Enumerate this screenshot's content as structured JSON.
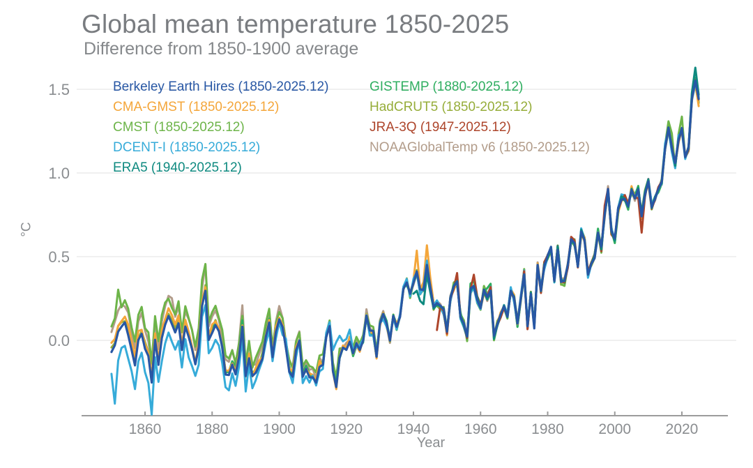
{
  "header": {
    "title": "Global mean temperature 1850-2025",
    "subtitle": "Difference from 1850-1900 average"
  },
  "y_axis": {
    "unit_label": "°C",
    "ticks": [
      {
        "value": 0.0,
        "label": "0.0"
      },
      {
        "value": 0.5,
        "label": "0.5"
      },
      {
        "value": 1.0,
        "label": "1.0"
      },
      {
        "value": 1.5,
        "label": "1.5"
      }
    ]
  },
  "x_axis": {
    "label": "Year",
    "ticks": [
      1860,
      1880,
      1900,
      1920,
      1940,
      1960,
      1980,
      2000,
      2020
    ]
  },
  "chart_data": {
    "type": "line",
    "title": "Global mean temperature 1850-2025",
    "subtitle": "Difference from 1850-1900 average",
    "xlabel": "Year",
    "ylabel": "°C",
    "xlim": [
      1839,
      2034
    ],
    "ylim": [
      -0.45,
      1.7
    ],
    "grid": "horizontal",
    "grid_color": "#ebebeb",
    "axis_color": "#9b9b9b",
    "tick_label_color": "#8a8d90",
    "legend_position": "top-left inside plot, two columns, colored text",
    "x_start_year": 1850,
    "x_end_year": 2025,
    "base_anomaly_by_year": [
      -0.07,
      -0.03,
      0.05,
      0.08,
      0.1,
      0.03,
      -0.05,
      -0.15,
      0.0,
      0.04,
      -0.05,
      -0.1,
      -0.25,
      0.0,
      -0.15,
      0.02,
      0.1,
      0.15,
      0.1,
      0.05,
      0.1,
      -0.05,
      0.08,
      0.02,
      -0.05,
      -0.15,
      -0.05,
      0.2,
      0.3,
      0.0,
      0.05,
      0.1,
      0.05,
      -0.05,
      -0.2,
      -0.2,
      -0.15,
      -0.2,
      -0.1,
      0.08,
      -0.22,
      -0.1,
      -0.22,
      -0.2,
      -0.15,
      -0.1,
      0.03,
      0.1,
      -0.1,
      0.05,
      0.13,
      0.08,
      -0.05,
      -0.18,
      -0.22,
      -0.05,
      0.0,
      -0.22,
      -0.18,
      -0.22,
      -0.22,
      -0.25,
      -0.15,
      -0.15,
      0.02,
      0.08,
      -0.18,
      -0.28,
      -0.1,
      -0.05,
      -0.05,
      0.0,
      -0.08,
      -0.02,
      -0.05,
      0.0,
      0.15,
      0.05,
      0.05,
      -0.1,
      0.1,
      0.15,
      0.1,
      0.0,
      0.15,
      0.08,
      0.15,
      0.3,
      0.35,
      0.28,
      0.35,
      0.42,
      0.3,
      0.3,
      0.45,
      0.33,
      0.2,
      0.22,
      0.2,
      0.18,
      0.05,
      0.25,
      0.32,
      0.35,
      0.15,
      0.1,
      0.02,
      0.3,
      0.32,
      0.25,
      0.2,
      0.3,
      0.25,
      0.3,
      0.02,
      0.1,
      0.15,
      0.2,
      0.15,
      0.3,
      0.25,
      0.1,
      0.25,
      0.4,
      0.08,
      0.28,
      0.08,
      0.45,
      0.3,
      0.45,
      0.5,
      0.55,
      0.35,
      0.55,
      0.35,
      0.35,
      0.45,
      0.6,
      0.58,
      0.45,
      0.65,
      0.6,
      0.4,
      0.45,
      0.5,
      0.65,
      0.55,
      0.75,
      0.9,
      0.65,
      0.6,
      0.78,
      0.85,
      0.85,
      0.8,
      0.9,
      0.85,
      0.9,
      0.75,
      0.88,
      0.95,
      0.8,
      0.85,
      0.9,
      0.95,
      1.15,
      1.27,
      1.15,
      1.05,
      1.2,
      1.27,
      1.1,
      1.15,
      1.45,
      1.55,
      1.44
    ],
    "series": [
      {
        "id": "berkeley",
        "label": "Berkeley Earth Hires (1850-2025.12)",
        "color": "#2857a4",
        "start_year": 1850,
        "early_offset": 0.0,
        "offset_zero_year": 1920,
        "noise_amp": 0.01,
        "seed": 11,
        "width": 3.2,
        "adjust": {}
      },
      {
        "id": "cma_gmst",
        "label": "CMA-GMST (1850-2025.12)",
        "color": "#f4a63a",
        "start_year": 1850,
        "early_offset": 0.05,
        "offset_zero_year": 1930,
        "noise_amp": 0.022,
        "seed": 22,
        "width": 3,
        "adjust": {
          "1941": 0.12,
          "1943": 0.06,
          "1944": 0.1,
          "1945": 0.05,
          "2025": -0.03
        }
      },
      {
        "id": "cmst",
        "label": "CMST (1850-2025.12)",
        "color": "#6db449",
        "start_year": 1850,
        "early_offset": 0.15,
        "offset_zero_year": 1935,
        "noise_amp": 0.028,
        "seed": 33,
        "width": 3,
        "adjust": {
          "1852": 0.1,
          "1877": 0.05,
          "1878": 0.06,
          "2016": 0.05,
          "2017": 0.06,
          "2019": 0.05,
          "2020": 0.06
        }
      },
      {
        "id": "dcent",
        "label": "DCENT-I (1850-2025.12)",
        "color": "#36abd9",
        "start_year": 1850,
        "early_offset": -0.15,
        "offset_zero_year": 1915,
        "noise_amp": 0.03,
        "seed": 44,
        "width": 3,
        "adjust": {
          "1851": -0.18,
          "1862": -0.1,
          "1902": 0.08,
          "1916": 0.14,
          "1917": 0.25,
          "1918": 0.12,
          "1919": 0.06,
          "1920": 0.05,
          "1921": 0.05
        }
      },
      {
        "id": "era5",
        "label": "ERA5 (1940-2025.12)",
        "color": "#0f8a80",
        "start_year": 1940,
        "early_offset": 0.0,
        "offset_zero_year": 1940,
        "noise_amp": 0.012,
        "seed": 55,
        "width": 3,
        "adjust": {
          "1940": -0.06,
          "1941": -0.12,
          "1942": -0.07,
          "1943": -0.09,
          "1944": -0.06,
          "1945": -0.05,
          "2023": 0.02,
          "2024": 0.07,
          "2025": 0.03
        }
      },
      {
        "id": "gistemp",
        "label": "GISTEMP (1880-2025.12)",
        "color": "#2fae60",
        "start_year": 1880,
        "early_offset": 0.04,
        "offset_zero_year": 1930,
        "noise_amp": 0.02,
        "seed": 66,
        "width": 3,
        "adjust": {
          "1957": 0.04,
          "1958": 0.04,
          "1962": 0.05,
          "1963": 0.05
        }
      },
      {
        "id": "hadcrut5",
        "label": "HadCRUT5 (1850-2025.12)",
        "color": "#96ad3a",
        "start_year": 1850,
        "early_offset": 0.03,
        "offset_zero_year": 1925,
        "noise_amp": 0.018,
        "seed": 77,
        "width": 3,
        "adjust": {}
      },
      {
        "id": "jra3q",
        "label": "JRA-3Q (1947-2025.12)",
        "color": "#ad452b",
        "start_year": 1947,
        "early_offset": 0.0,
        "offset_zero_year": 1947,
        "noise_amp": 0.02,
        "seed": 88,
        "width": 3,
        "adjust": {
          "1947": -0.14,
          "1953": 0.05,
          "1958": 0.06,
          "1997": 0.04,
          "2007": -0.06,
          "2008": -0.1
        }
      },
      {
        "id": "noaa",
        "label": "NOAAGlobalTemp v6 (1850-2025.12)",
        "color": "#b29c8a",
        "start_year": 1850,
        "early_offset": 0.13,
        "offset_zero_year": 1935,
        "noise_amp": 0.022,
        "seed": 99,
        "width": 3,
        "adjust": {
          "1868": 0.05,
          "1878": 0.08,
          "1889": 0.06
        }
      }
    ],
    "draw_order": [
      "noaa",
      "hadcrut5",
      "cmst",
      "gistemp",
      "cma_gmst",
      "dcent",
      "jra3q",
      "era5",
      "berkeley"
    ],
    "legend_columns": [
      [
        "berkeley",
        "cma_gmst",
        "cmst",
        "dcent",
        "era5"
      ],
      [
        "gistemp",
        "hadcrut5",
        "jra3q",
        "noaa"
      ]
    ]
  }
}
